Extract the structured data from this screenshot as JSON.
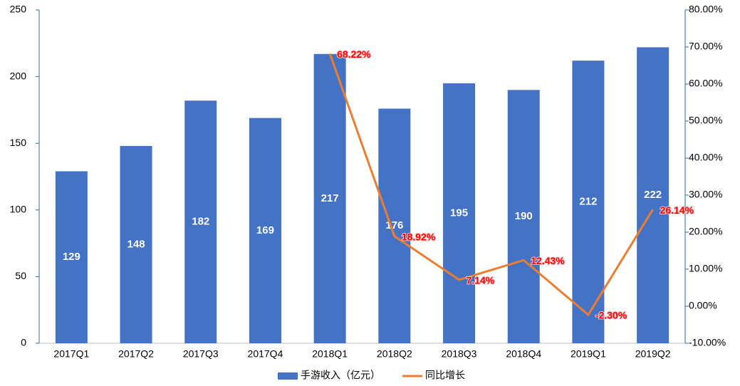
{
  "chart_data": {
    "type": "bar",
    "categories": [
      "2017Q1",
      "2017Q2",
      "2017Q3",
      "2017Q4",
      "2018Q1",
      "2018Q2",
      "2018Q3",
      "2018Q4",
      "2019Q1",
      "2019Q2"
    ],
    "series": [
      {
        "name": "手游收入（亿元）",
        "type": "bar",
        "color": "#4472c4",
        "values": [
          129,
          148,
          182,
          169,
          217,
          176,
          195,
          190,
          212,
          222
        ]
      },
      {
        "name": "同比增长",
        "type": "line",
        "axis": "y2",
        "color": "#ed7d31",
        "values": [
          null,
          null,
          null,
          null,
          68.22,
          18.92,
          7.14,
          12.43,
          -2.3,
          26.14
        ],
        "value_labels": [
          null,
          null,
          null,
          null,
          "68.22%",
          "18.92%",
          "7.14%",
          "12.43%",
          "-2.30%",
          "26.14%"
        ]
      }
    ],
    "ylim": [
      0,
      250
    ],
    "yticks": [
      0,
      50,
      100,
      150,
      200,
      250
    ],
    "y2lim": [
      -10,
      80
    ],
    "y2ticks": [
      {
        "value": -10,
        "label": "-10.00%"
      },
      {
        "value": 0,
        "label": "0.00%"
      },
      {
        "value": 10,
        "label": "10.00%"
      },
      {
        "value": 20,
        "label": "20.00%"
      },
      {
        "value": 30,
        "label": "30.00%"
      },
      {
        "value": 40,
        "label": "40.00%"
      },
      {
        "value": 50,
        "label": "50.00%"
      },
      {
        "value": 60,
        "label": "60.00%"
      },
      {
        "value": 70,
        "label": "70.00%"
      },
      {
        "value": 80,
        "label": "80.00%"
      }
    ],
    "legend": "bottom"
  }
}
